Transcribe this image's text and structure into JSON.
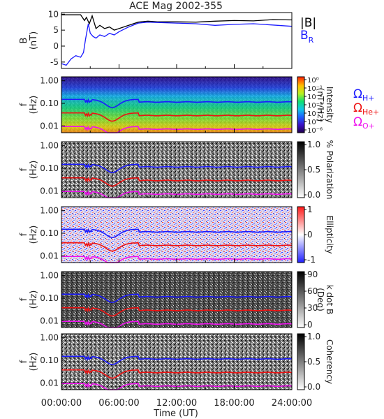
{
  "figure": {
    "title": "ACE Mag 2002-355",
    "xlabel": "Time (UT)",
    "x_ticks": [
      "00:00:00",
      "06:00:00",
      "12:00:00",
      "18:00:00",
      "24:00:00"
    ]
  },
  "chart_data": [
    {
      "type": "line",
      "ylabel": "B",
      "ylabel_unit": "(nT)",
      "y_ticks": [
        "10",
        "5",
        "0",
        "-5"
      ],
      "ylim": [
        -7,
        10.5
      ],
      "xlim_hours": [
        0,
        24
      ],
      "series": [
        {
          "name": "|B|",
          "color": "#000000",
          "x": [
            0,
            1,
            2,
            2.4,
            2.6,
            2.9,
            3.2,
            3.6,
            4.0,
            4.5,
            5,
            5.5,
            6,
            7,
            8,
            9,
            10,
            12,
            14,
            16,
            18,
            20,
            22,
            24
          ],
          "y": [
            9.8,
            9.8,
            9.8,
            8.0,
            9.0,
            7.0,
            9.5,
            5.5,
            6.5,
            5.5,
            6.0,
            5.0,
            5.5,
            6.5,
            7.5,
            7.8,
            7.6,
            7.6,
            7.5,
            7.8,
            8.0,
            7.9,
            8.3,
            8.2
          ]
        },
        {
          "name": "B",
          "subscript": "R",
          "color": "#1a1aff",
          "x": [
            0,
            0.5,
            1,
            1.5,
            2,
            2.3,
            2.5,
            2.8,
            3.0,
            3.3,
            3.6,
            4.0,
            4.5,
            5,
            5.5,
            6,
            7,
            8,
            9,
            10,
            12,
            14,
            16,
            18,
            20,
            22,
            24
          ],
          "y": [
            -5.5,
            -6.0,
            -4.0,
            -3.0,
            -3.5,
            -2.0,
            2.0,
            7.0,
            4.0,
            3.0,
            2.5,
            3.5,
            3.0,
            4.0,
            3.5,
            4.5,
            6.0,
            7.2,
            7.5,
            7.4,
            7.2,
            7.0,
            6.5,
            6.8,
            7.0,
            6.6,
            6.2
          ]
        }
      ]
    },
    {
      "type": "heatmap",
      "ylabel": "f",
      "ylabel_unit": "(Hz)",
      "yscale": "log",
      "y_ticks": [
        "1.00",
        "0.10",
        "0.01"
      ],
      "colorbar": {
        "label_line1": "Intensity",
        "label_line2": "(nT²/Hz)",
        "tick_labels": [
          "10⁰",
          "10⁻¹",
          "10⁻²",
          "10⁻³",
          "10⁻⁴",
          "10⁻⁵",
          "10⁻⁶"
        ],
        "range": [
          -6,
          0
        ]
      },
      "gyro_legend": [
        {
          "symbol": "Ω",
          "subscript": "H+",
          "color": "#1a1aff"
        },
        {
          "symbol": "Ω",
          "subscript": "He+",
          "color": "#ee1111"
        },
        {
          "symbol": "Ω",
          "subscript": "O+",
          "color": "#ee11ee"
        }
      ]
    },
    {
      "type": "heatmap",
      "ylabel": "f",
      "ylabel_unit": "(Hz)",
      "yscale": "log",
      "y_ticks": [
        "1.00",
        "0.10",
        "0.01"
      ],
      "colorbar": {
        "label_line1": "% Polarization",
        "label_line2": "",
        "tick_labels": [
          "1.0",
          "0.5",
          "0.0"
        ],
        "range": [
          0,
          1
        ]
      }
    },
    {
      "type": "heatmap",
      "ylabel": "f",
      "ylabel_unit": "(Hz)",
      "yscale": "log",
      "y_ticks": [
        "1.00",
        "0.10",
        "0.01"
      ],
      "colorbar": {
        "label_line1": "Ellipticity",
        "label_line2": "",
        "tick_labels": [
          "1",
          "0",
          "-1"
        ],
        "range": [
          -1,
          1
        ]
      }
    },
    {
      "type": "heatmap",
      "ylabel": "f",
      "ylabel_unit": "(Hz)",
      "yscale": "log",
      "y_ticks": [
        "1.00",
        "0.10",
        "0.01"
      ],
      "colorbar": {
        "label_line1": "k dot B",
        "label_line2": "(Deg)",
        "tick_labels": [
          "90",
          "60",
          "30",
          "0"
        ],
        "range": [
          0,
          90
        ]
      }
    },
    {
      "type": "heatmap",
      "ylabel": "f",
      "ylabel_unit": "(Hz)",
      "yscale": "log",
      "y_ticks": [
        "1.00",
        "0.10",
        "0.01"
      ],
      "colorbar": {
        "label_line1": "Coherency",
        "label_line2": "",
        "tick_labels": [
          "1.0",
          "0.5",
          "0.0"
        ],
        "range": [
          0,
          1
        ]
      }
    }
  ]
}
